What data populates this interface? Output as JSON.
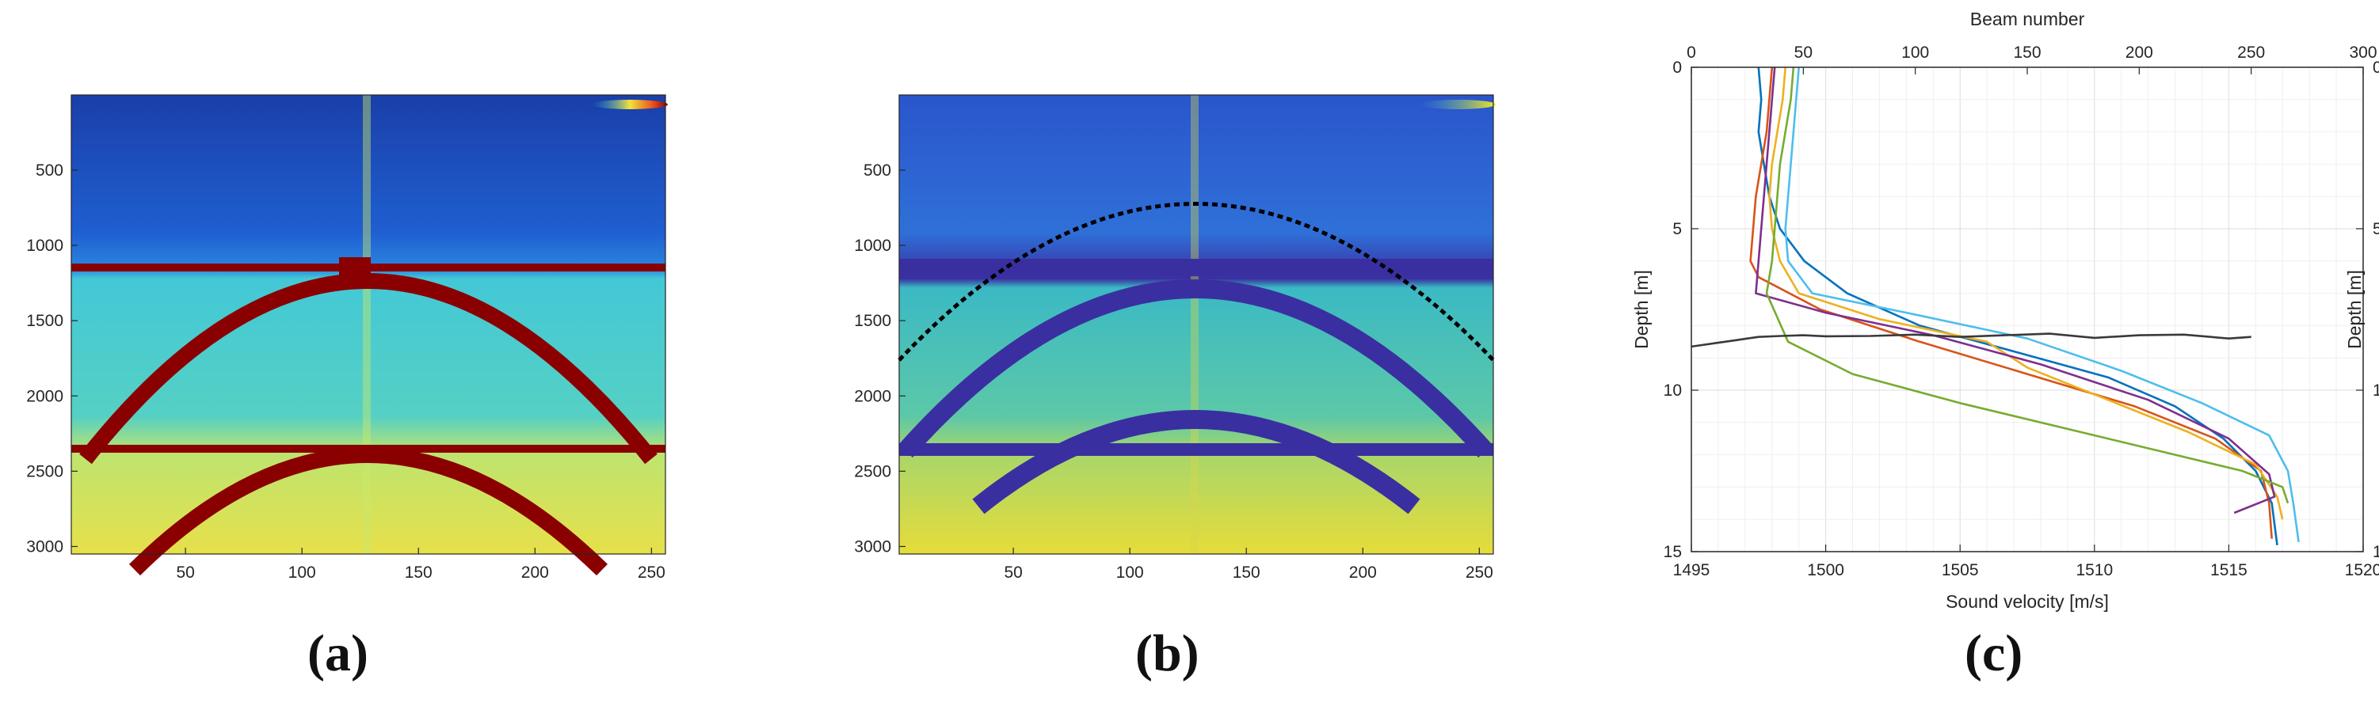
{
  "captions": [
    "(a)",
    "(b)",
    "(c)"
  ],
  "colormap": [
    "#1a2a8f",
    "#1f5fd1",
    "#19b0e8",
    "#43d3c7",
    "#c9e86a",
    "#f3e23a",
    "#e8541d",
    "#8a0000"
  ],
  "colormap_b": [
    "#3a2fa0",
    "#2a5ed4",
    "#2f8fd8",
    "#3bb9c4",
    "#6cd38a",
    "#d7d84a",
    "#f6e41f"
  ],
  "chart_data": [
    {
      "type": "heatmap",
      "panel": "(a)",
      "colormap": "jet",
      "xlim": [
        1,
        256
      ],
      "ylim": [
        3050,
        1
      ],
      "xticks": [
        50,
        100,
        150,
        200,
        250
      ],
      "yticks": [
        500,
        1000,
        1500,
        2000,
        2500,
        3000
      ],
      "features": {
        "horizontal_bands": [
          1200,
          2400
        ],
        "arc_apex_x": 128,
        "arc1_apex_y": 1200,
        "arc1_edge_y": 2400,
        "arc2_apex_y": 2420,
        "arc2_edge_y": 3050
      }
    },
    {
      "type": "heatmap",
      "panel": "(b)",
      "colormap": "parula",
      "xlim": [
        1,
        256
      ],
      "ylim": [
        3050,
        1
      ],
      "xticks": [
        50,
        100,
        150,
        200,
        250
      ],
      "yticks": [
        500,
        1000,
        1500,
        2000,
        2500,
        3000
      ],
      "features": {
        "horizontal_bands": [
          1200,
          2400
        ],
        "detected_curve": {
          "apex_x": 128,
          "apex_y": 860,
          "edge_y": 1720
        }
      }
    },
    {
      "type": "line",
      "panel": "(c)",
      "xlabel": "Sound velocity [m/s]",
      "ylabel": "Depth [m]",
      "x2label": "Beam number",
      "y2label": "Depth [m]",
      "xlim": [
        1495,
        1520
      ],
      "ylim": [
        15,
        0
      ],
      "x2lim": [
        0,
        300
      ],
      "xticks": [
        1495,
        1500,
        1505,
        1510,
        1515,
        1520
      ],
      "yticks": [
        0,
        5,
        10,
        15
      ],
      "x2ticks": [
        0,
        50,
        100,
        150,
        200,
        250,
        300
      ],
      "grid": true,
      "series": [
        {
          "color": "#0072BD",
          "velocity": [
            1497.5,
            1497.6,
            1497.5,
            1497.7,
            1497.9,
            1498.3,
            1499.2,
            1500.8,
            1503.5,
            1507.0,
            1510.5,
            1513.0,
            1514.8,
            1516.0,
            1516.6,
            1516.8
          ],
          "depth": [
            0,
            1,
            2,
            3,
            4,
            5,
            6,
            7,
            8,
            8.8,
            9.6,
            10.5,
            11.5,
            12.5,
            13.5,
            14.8
          ]
        },
        {
          "color": "#D95319",
          "velocity": [
            1498.0,
            1497.9,
            1497.8,
            1497.6,
            1497.4,
            1497.3,
            1497.2,
            1497.5,
            1499.8,
            1503.5,
            1507.5,
            1511.5,
            1514.5,
            1516.2,
            1516.5,
            1516.6
          ],
          "depth": [
            0,
            1,
            2,
            3,
            4,
            5,
            6,
            6.5,
            7.5,
            8.5,
            9.5,
            10.5,
            11.5,
            12.5,
            13.5,
            14.6
          ]
        },
        {
          "color": "#EDB120",
          "velocity": [
            1498.5,
            1498.4,
            1498.2,
            1498.0,
            1497.9,
            1498.0,
            1498.3,
            1499.0,
            1502.0,
            1506.0,
            1507.5,
            1510.5,
            1513.5,
            1516.0,
            1516.8,
            1517.0
          ],
          "depth": [
            0,
            1,
            2,
            3,
            4,
            5,
            6,
            7,
            7.8,
            8.5,
            9.3,
            10.3,
            11.3,
            12.3,
            13.3,
            14.0
          ]
        },
        {
          "color": "#7E2F8E",
          "velocity": [
            1498.1,
            1498.0,
            1497.9,
            1497.8,
            1497.7,
            1497.6,
            1497.5,
            1497.4,
            1500.0,
            1504.0,
            1508.0,
            1512.0,
            1515.0,
            1516.5,
            1516.7,
            1515.2
          ],
          "depth": [
            0,
            1,
            2,
            3,
            4,
            5,
            6,
            7,
            7.6,
            8.3,
            9.2,
            10.3,
            11.5,
            12.6,
            13.3,
            13.8
          ]
        },
        {
          "color": "#77AC30",
          "velocity": [
            1498.8,
            1498.7,
            1498.5,
            1498.3,
            1498.2,
            1498.1,
            1498.0,
            1497.8,
            1498.6,
            1501.0,
            1505.0,
            1509.5,
            1513.0,
            1515.5,
            1517.0,
            1517.2
          ],
          "depth": [
            0,
            1,
            2,
            3,
            4,
            5,
            6,
            7,
            8.5,
            9.5,
            10.4,
            11.3,
            12.0,
            12.5,
            13.0,
            13.5
          ]
        },
        {
          "color": "#4DBEEE",
          "velocity": [
            1499.0,
            1498.9,
            1498.8,
            1498.7,
            1498.6,
            1498.5,
            1498.6,
            1499.5,
            1503.0,
            1507.5,
            1511.0,
            1514.0,
            1516.5,
            1517.2,
            1517.4,
            1517.6
          ],
          "depth": [
            0,
            1,
            2,
            3,
            4,
            5,
            6,
            7,
            7.6,
            8.4,
            9.4,
            10.4,
            11.4,
            12.5,
            13.5,
            14.7
          ]
        }
      ],
      "beam_profile": {
        "color": "#3a3a3a",
        "beam": [
          0,
          5,
          10,
          15,
          20,
          25,
          30,
          40,
          50,
          60,
          80,
          100,
          120,
          140,
          160,
          180,
          200,
          220,
          240,
          250
        ],
        "depth": [
          8.65,
          8.6,
          8.55,
          8.5,
          8.45,
          8.4,
          8.35,
          8.32,
          8.3,
          8.33,
          8.32,
          8.28,
          8.35,
          8.3,
          8.25,
          8.38,
          8.3,
          8.28,
          8.4,
          8.35
        ]
      }
    }
  ]
}
